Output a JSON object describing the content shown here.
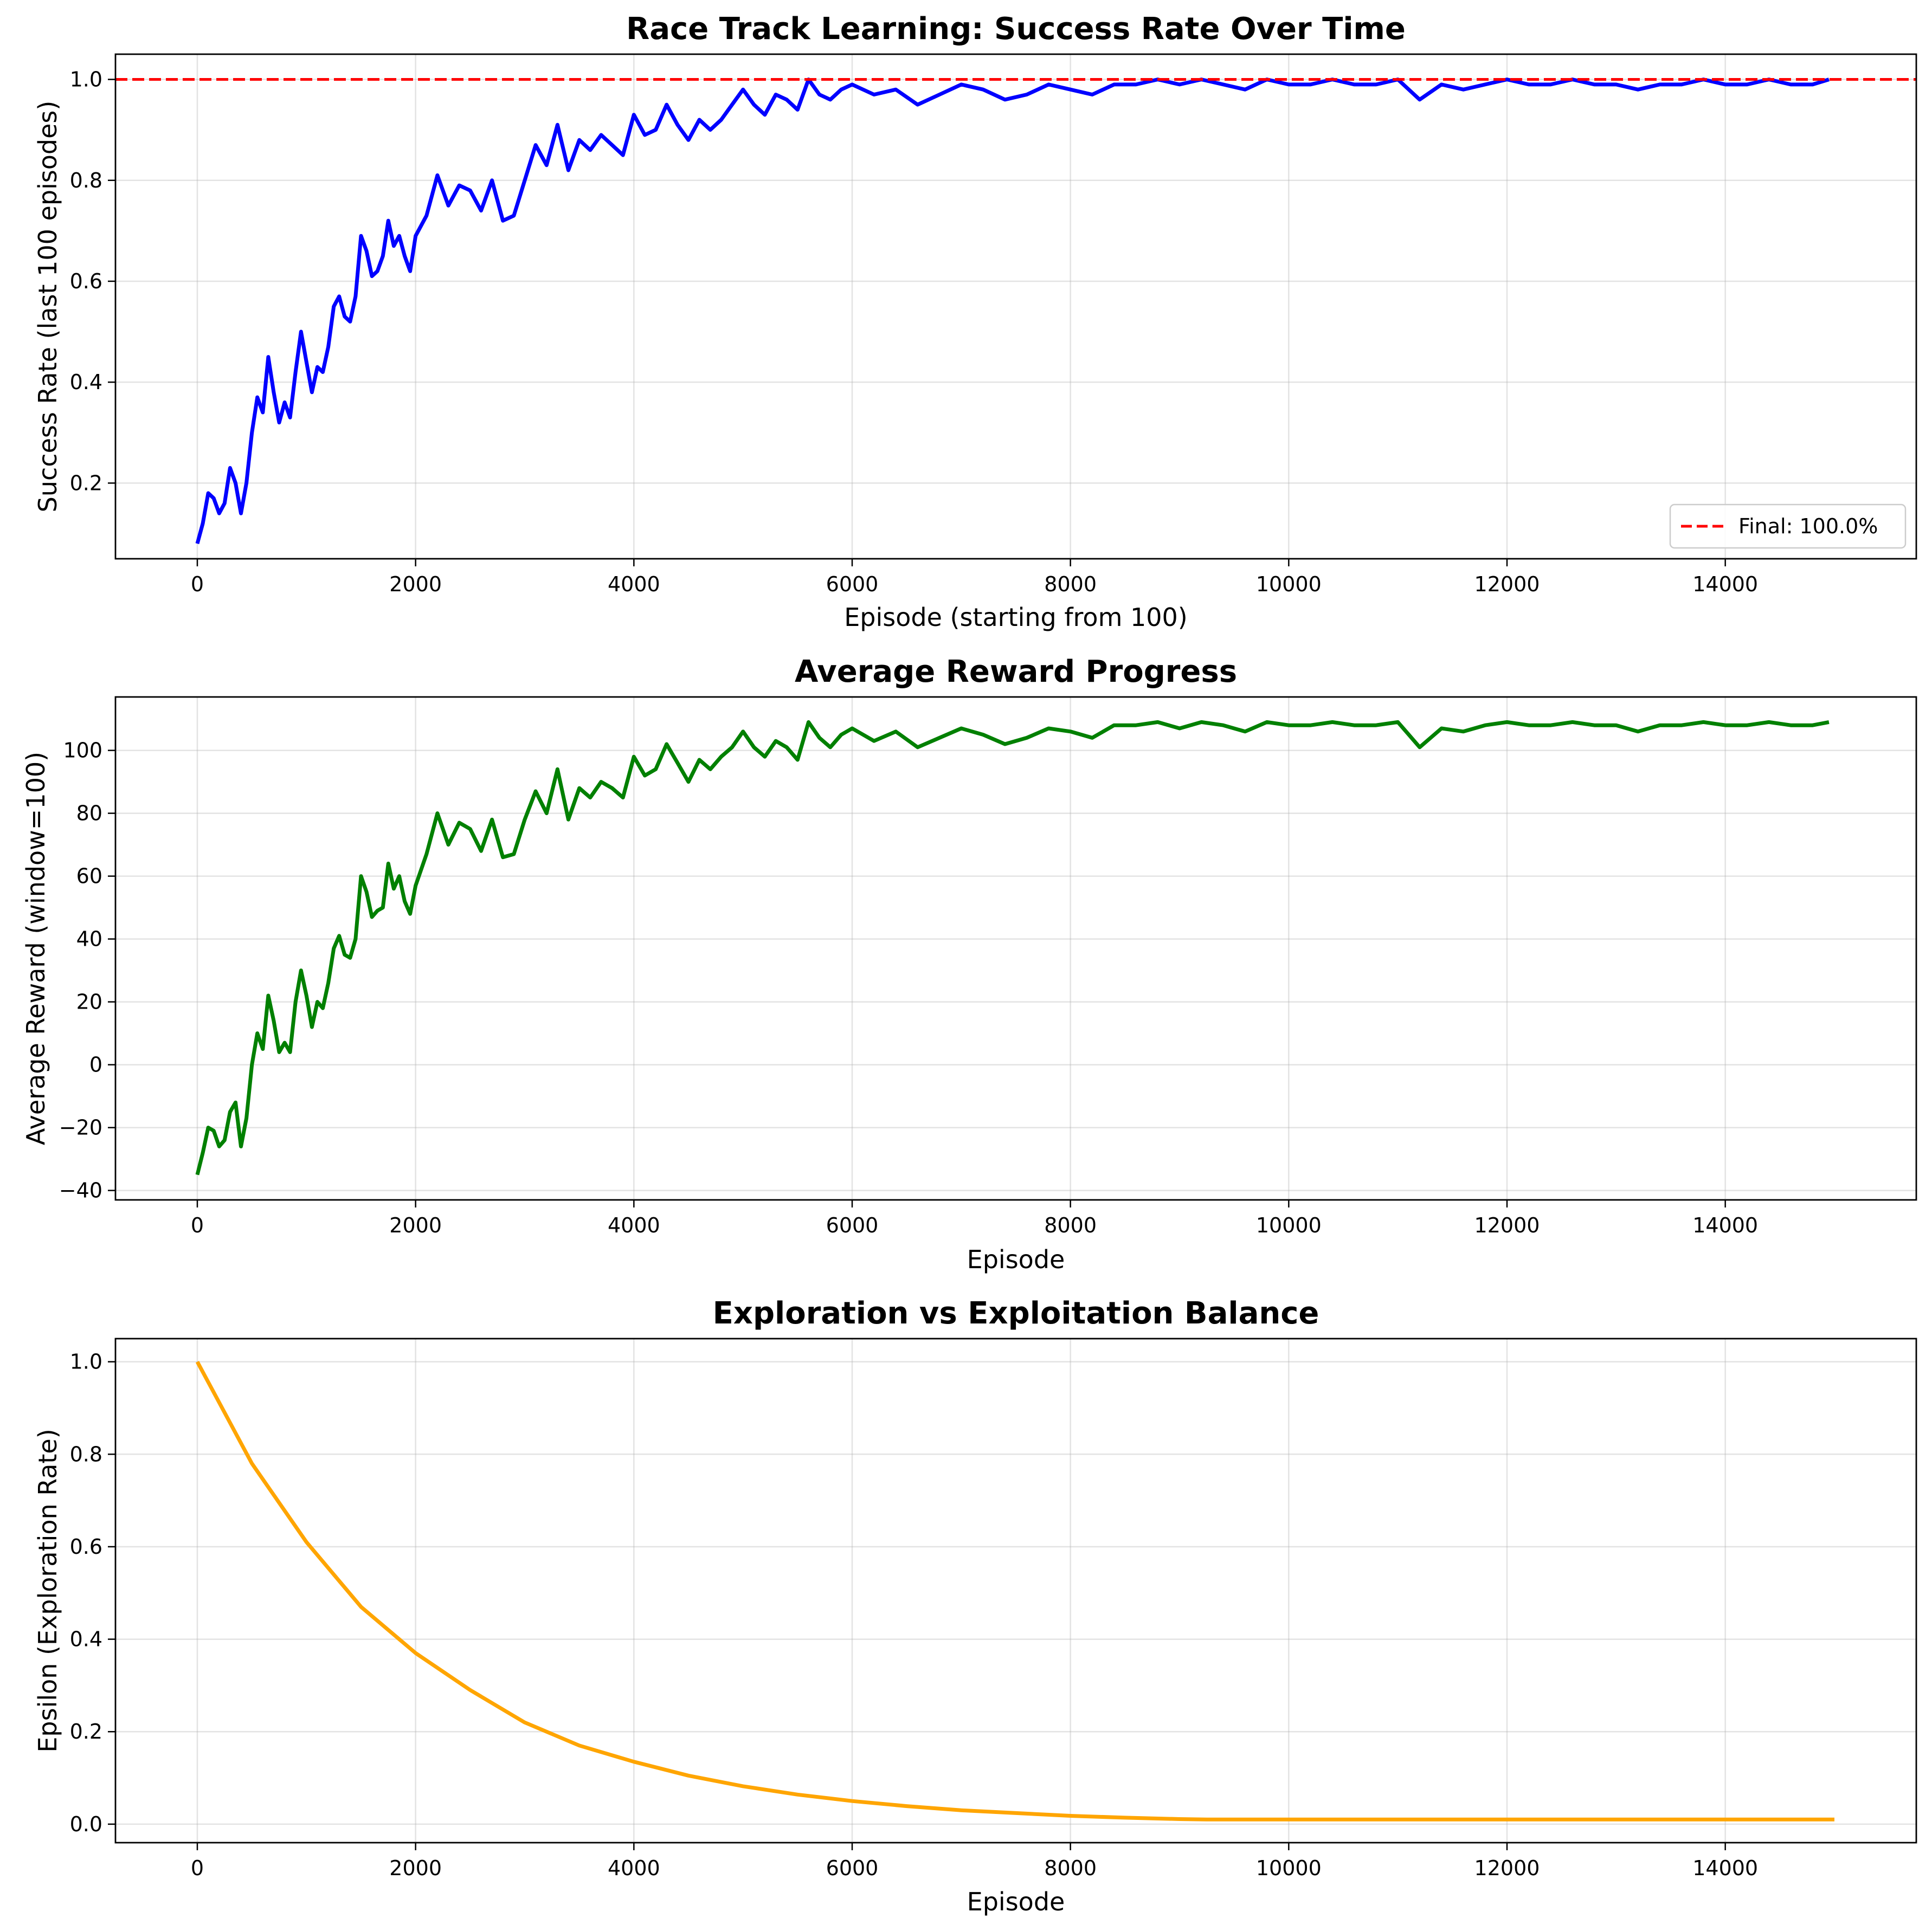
{
  "chart_data": [
    {
      "type": "line",
      "title": "Race Track Learning: Success Rate Over Time",
      "xlabel": "Episode (starting from 100)",
      "ylabel": "Success Rate (last 100 episodes)",
      "xlim": [
        -750,
        15750
      ],
      "ylim": [
        0.05,
        1.05
      ],
      "xticks": [
        0,
        2000,
        4000,
        6000,
        8000,
        10000,
        12000,
        14000
      ],
      "xtick_labels": [
        "0",
        "2000",
        "4000",
        "6000",
        "8000",
        "10000",
        "12000",
        "14000"
      ],
      "yticks": [
        0.2,
        0.4,
        0.6,
        0.8,
        1.0
      ],
      "ytick_labels": [
        "0.2",
        "0.4",
        "0.6",
        "0.8",
        "1.0"
      ],
      "grid": true,
      "legend": {
        "placement": "bottom-right",
        "entries": [
          "Final: 100.0%"
        ]
      },
      "reference_line": {
        "y": 1.0,
        "color": "#ff0000",
        "style": "dashed",
        "label": "Final: 100.0%"
      },
      "series": [
        {
          "color": "#0000ff",
          "x": [
            0,
            50,
            100,
            150,
            200,
            250,
            300,
            350,
            400,
            450,
            500,
            550,
            600,
            650,
            700,
            750,
            800,
            850,
            900,
            950,
            1000,
            1050,
            1100,
            1150,
            1200,
            1250,
            1300,
            1350,
            1400,
            1450,
            1500,
            1550,
            1600,
            1650,
            1700,
            1750,
            1800,
            1850,
            1900,
            1950,
            2000,
            2100,
            2200,
            2300,
            2400,
            2500,
            2600,
            2700,
            2800,
            2900,
            3000,
            3100,
            3200,
            3300,
            3400,
            3500,
            3600,
            3700,
            3800,
            3900,
            4000,
            4100,
            4200,
            4300,
            4400,
            4500,
            4600,
            4700,
            4800,
            4900,
            5000,
            5100,
            5200,
            5300,
            5400,
            5500,
            5600,
            5700,
            5800,
            5900,
            6000,
            6200,
            6400,
            6600,
            6800,
            7000,
            7200,
            7400,
            7600,
            7800,
            8000,
            8200,
            8400,
            8600,
            8800,
            9000,
            9200,
            9400,
            9600,
            9800,
            10000,
            10200,
            10400,
            10600,
            10800,
            11000,
            11100,
            11200,
            11400,
            11600,
            11800,
            12000,
            12200,
            12400,
            12600,
            12800,
            13000,
            13200,
            13400,
            13600,
            13800,
            14000,
            14200,
            14400,
            14600,
            14800,
            14950
          ],
          "y": [
            0.08,
            0.12,
            0.18,
            0.17,
            0.14,
            0.16,
            0.23,
            0.2,
            0.14,
            0.2,
            0.3,
            0.37,
            0.34,
            0.45,
            0.38,
            0.32,
            0.36,
            0.33,
            0.42,
            0.5,
            0.44,
            0.38,
            0.43,
            0.42,
            0.47,
            0.55,
            0.57,
            0.53,
            0.52,
            0.57,
            0.69,
            0.66,
            0.61,
            0.62,
            0.65,
            0.72,
            0.67,
            0.69,
            0.65,
            0.62,
            0.69,
            0.73,
            0.81,
            0.75,
            0.79,
            0.78,
            0.74,
            0.8,
            0.72,
            0.73,
            0.8,
            0.87,
            0.83,
            0.91,
            0.82,
            0.88,
            0.86,
            0.89,
            0.87,
            0.85,
            0.93,
            0.89,
            0.9,
            0.95,
            0.91,
            0.88,
            0.92,
            0.9,
            0.92,
            0.95,
            0.98,
            0.95,
            0.93,
            0.97,
            0.96,
            0.94,
            1.0,
            0.97,
            0.96,
            0.98,
            0.99,
            0.97,
            0.98,
            0.95,
            0.97,
            0.99,
            0.98,
            0.96,
            0.97,
            0.99,
            0.98,
            0.97,
            0.99,
            0.99,
            1.0,
            0.99,
            1.0,
            0.99,
            0.98,
            1.0,
            0.99,
            0.99,
            1.0,
            0.99,
            0.99,
            1.0,
            0.98,
            0.96,
            0.99,
            0.98,
            0.99,
            1.0,
            0.99,
            0.99,
            1.0,
            0.99,
            0.99,
            0.98,
            0.99,
            0.99,
            1.0,
            0.99,
            0.99,
            1.0,
            0.99,
            0.99,
            1.0
          ]
        }
      ]
    },
    {
      "type": "line",
      "title": "Average Reward Progress",
      "xlabel": "Episode",
      "ylabel": "Average Reward (window=100)",
      "xlim": [
        -750,
        15750
      ],
      "ylim": [
        -43,
        117
      ],
      "xticks": [
        0,
        2000,
        4000,
        6000,
        8000,
        10000,
        12000,
        14000
      ],
      "xtick_labels": [
        "0",
        "2000",
        "4000",
        "6000",
        "8000",
        "10000",
        "12000",
        "14000"
      ],
      "yticks": [
        -40,
        -20,
        0,
        20,
        40,
        60,
        80,
        100
      ],
      "ytick_labels": [
        "−40",
        "−20",
        "0",
        "20",
        "40",
        "60",
        "80",
        "100"
      ],
      "grid": true,
      "series": [
        {
          "color": "#008000",
          "x": [
            0,
            50,
            100,
            150,
            200,
            250,
            300,
            350,
            400,
            450,
            500,
            550,
            600,
            650,
            700,
            750,
            800,
            850,
            900,
            950,
            1000,
            1050,
            1100,
            1150,
            1200,
            1250,
            1300,
            1350,
            1400,
            1450,
            1500,
            1550,
            1600,
            1650,
            1700,
            1750,
            1800,
            1850,
            1900,
            1950,
            2000,
            2100,
            2200,
            2300,
            2400,
            2500,
            2600,
            2700,
            2800,
            2900,
            3000,
            3100,
            3200,
            3300,
            3400,
            3500,
            3600,
            3700,
            3800,
            3900,
            4000,
            4100,
            4200,
            4300,
            4400,
            4500,
            4600,
            4700,
            4800,
            4900,
            5000,
            5100,
            5200,
            5300,
            5400,
            5500,
            5600,
            5700,
            5800,
            5900,
            6000,
            6200,
            6400,
            6600,
            6800,
            7000,
            7200,
            7400,
            7600,
            7800,
            8000,
            8200,
            8400,
            8600,
            8800,
            9000,
            9200,
            9400,
            9600,
            9800,
            10000,
            10200,
            10400,
            10600,
            10800,
            11000,
            11100,
            11200,
            11400,
            11600,
            11800,
            12000,
            12200,
            12400,
            12600,
            12800,
            13000,
            13200,
            13400,
            13600,
            13800,
            14000,
            14200,
            14400,
            14600,
            14800,
            14950
          ],
          "y": [
            -35,
            -28,
            -20,
            -21,
            -26,
            -24,
            -15,
            -12,
            -26,
            -17,
            0,
            10,
            5,
            22,
            14,
            4,
            7,
            4,
            20,
            30,
            22,
            12,
            20,
            18,
            26,
            37,
            41,
            35,
            34,
            40,
            60,
            55,
            47,
            49,
            50,
            64,
            56,
            60,
            52,
            48,
            57,
            67,
            80,
            70,
            77,
            75,
            68,
            78,
            66,
            67,
            78,
            87,
            80,
            94,
            78,
            88,
            85,
            90,
            88,
            85,
            98,
            92,
            94,
            102,
            96,
            90,
            97,
            94,
            98,
            101,
            106,
            101,
            98,
            103,
            101,
            97,
            109,
            104,
            101,
            105,
            107,
            103,
            106,
            101,
            104,
            107,
            105,
            102,
            104,
            107,
            106,
            104,
            108,
            108,
            109,
            107,
            109,
            108,
            106,
            109,
            108,
            108,
            109,
            108,
            108,
            109,
            105,
            101,
            107,
            106,
            108,
            109,
            108,
            108,
            109,
            108,
            108,
            106,
            108,
            108,
            109,
            108,
            108,
            109,
            108,
            108,
            109
          ]
        }
      ]
    },
    {
      "type": "line",
      "title": "Exploration vs Exploitation Balance",
      "xlabel": "Episode",
      "ylabel": "Epsilon (Exploration Rate)",
      "xlim": [
        -750,
        15750
      ],
      "ylim": [
        -0.04,
        1.05
      ],
      "xticks": [
        0,
        2000,
        4000,
        6000,
        8000,
        10000,
        12000,
        14000
      ],
      "xtick_labels": [
        "0",
        "2000",
        "4000",
        "6000",
        "8000",
        "10000",
        "12000",
        "14000"
      ],
      "yticks": [
        0.0,
        0.2,
        0.4,
        0.6,
        0.8,
        1.0
      ],
      "ytick_labels": [
        "0.0",
        "0.2",
        "0.4",
        "0.6",
        "0.8",
        "1.0"
      ],
      "grid": true,
      "series": [
        {
          "color": "#ffa500",
          "x": [
            0,
            500,
            1000,
            1500,
            2000,
            2500,
            3000,
            3500,
            4000,
            4500,
            5000,
            5500,
            6000,
            6500,
            7000,
            7500,
            8000,
            8500,
            9000,
            9250,
            9500,
            10000,
            11000,
            12000,
            13000,
            14000,
            15000
          ],
          "y": [
            1.0,
            0.78,
            0.61,
            0.47,
            0.37,
            0.29,
            0.22,
            0.17,
            0.135,
            0.105,
            0.082,
            0.064,
            0.05,
            0.039,
            0.03,
            0.024,
            0.018,
            0.014,
            0.011,
            0.01,
            0.01,
            0.01,
            0.01,
            0.01,
            0.01,
            0.01,
            0.01
          ]
        }
      ]
    }
  ]
}
